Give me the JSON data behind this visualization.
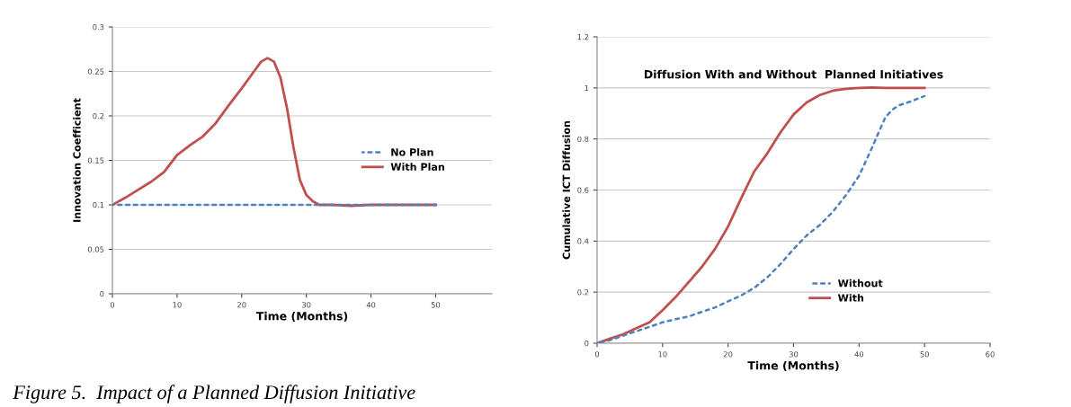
{
  "chart_data": [
    {
      "type": "line",
      "xlabel": "Time (Months)",
      "ylabel": "Innovation Coefficient",
      "xlim": [
        0,
        58.7
      ],
      "xticks": [
        0,
        10,
        20,
        30,
        40,
        50
      ],
      "ylim": [
        0,
        0.3
      ],
      "yticks": [
        0,
        0.05,
        0.1,
        0.15,
        0.2,
        0.25,
        0.3
      ],
      "grid": "y",
      "legend": "right",
      "marker": "none",
      "series": [
        {
          "name": "No Plan",
          "color": "#4f81bd",
          "line_style": "dotted",
          "x": [
            0,
            10,
            20,
            30,
            40,
            50
          ],
          "values": [
            0.1,
            0.1,
            0.1,
            0.1,
            0.1,
            0.1
          ]
        },
        {
          "name": "With Plan",
          "color": "#c0504d",
          "line_style": "solid",
          "x": [
            0,
            2,
            4,
            6,
            8,
            10,
            12,
            14,
            16,
            18,
            20,
            22,
            23,
            24,
            25,
            26,
            27,
            28,
            29,
            30,
            31,
            32,
            34,
            37,
            40,
            50
          ],
          "values": [
            0.1,
            0.108,
            0.117,
            0.126,
            0.137,
            0.156,
            0.167,
            0.177,
            0.192,
            0.212,
            0.231,
            0.251,
            0.261,
            0.265,
            0.261,
            0.243,
            0.209,
            0.165,
            0.128,
            0.111,
            0.104,
            0.1,
            0.1,
            0.099,
            0.1,
            0.1
          ]
        }
      ]
    },
    {
      "type": "line",
      "title": "Diffusion With and Without  Planned Initiatives",
      "xlabel": "Time (Months)",
      "ylabel": "Cumulative ICT Diffusion",
      "xlim": [
        0,
        60
      ],
      "xticks": [
        0,
        10,
        20,
        30,
        40,
        50,
        60
      ],
      "ylim": [
        0,
        1.2
      ],
      "yticks": [
        0,
        0.2,
        0.4,
        0.6,
        0.8,
        1,
        1.2
      ],
      "grid": "y",
      "legend": "bottom right",
      "marker": "none",
      "annotations": [
        "Figure 5.  Impact of a Planned Diffusion Initiative"
      ],
      "series": [
        {
          "name": "Without",
          "color": "#4f81bd",
          "line_style": "dotted",
          "x": [
            0,
            2,
            4,
            6,
            8,
            10,
            12,
            14,
            16,
            18,
            20,
            22,
            24,
            26,
            28,
            30,
            32,
            34,
            36,
            38,
            40,
            42,
            43,
            44,
            45,
            46,
            48,
            50
          ],
          "values": [
            0,
            0.012,
            0.03,
            0.047,
            0.064,
            0.082,
            0.094,
            0.105,
            0.123,
            0.14,
            0.164,
            0.187,
            0.217,
            0.258,
            0.31,
            0.369,
            0.422,
            0.463,
            0.515,
            0.58,
            0.656,
            0.767,
            0.826,
            0.884,
            0.913,
            0.931,
            0.948,
            0.968
          ]
        },
        {
          "name": "With",
          "color": "#c0504d",
          "line_style": "solid",
          "x": [
            0,
            2,
            4,
            6,
            8,
            10,
            12,
            14,
            16,
            18,
            20,
            22,
            24,
            26,
            28,
            30,
            32,
            34,
            36,
            38,
            40,
            42,
            44,
            50
          ],
          "values": [
            0,
            0.018,
            0.035,
            0.059,
            0.082,
            0.129,
            0.181,
            0.24,
            0.299,
            0.369,
            0.457,
            0.568,
            0.673,
            0.744,
            0.826,
            0.896,
            0.943,
            0.972,
            0.989,
            0.996,
            1.0,
            1.002,
            1.0,
            1.0
          ]
        }
      ]
    }
  ]
}
